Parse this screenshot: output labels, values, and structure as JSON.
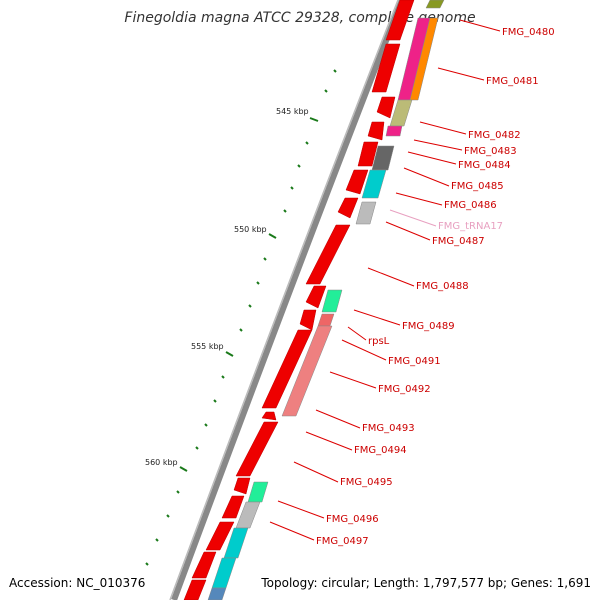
{
  "title": "Finegoldia magna ATCC 29328, complete genome",
  "footer": {
    "accession": "Accession: NC_010376",
    "summary": "Topology: circular; Length: 1,797,577 bp; Genes: 1,691"
  },
  "scale_labels": [
    "545 kbp",
    "550 kbp",
    "555 kbp",
    "560 kbp"
  ],
  "genes": [
    {
      "name": "FMG_0480",
      "color": "#cc0000"
    },
    {
      "name": "FMG_0481",
      "color": "#cc0000"
    },
    {
      "name": "FMG_0482",
      "color": "#cc0000"
    },
    {
      "name": "FMG_0483",
      "color": "#cc0000"
    },
    {
      "name": "FMG_0484",
      "color": "#cc0000"
    },
    {
      "name": "FMG_0485",
      "color": "#cc0000"
    },
    {
      "name": "FMG_0486",
      "color": "#cc0000"
    },
    {
      "name": "FMG_tRNA17",
      "color": "#e8a0c0"
    },
    {
      "name": "FMG_0487",
      "color": "#cc0000"
    },
    {
      "name": "FMG_0488",
      "color": "#cc0000"
    },
    {
      "name": "FMG_0489",
      "color": "#cc0000"
    },
    {
      "name": "rpsL",
      "color": "#cc0000"
    },
    {
      "name": "FMG_0491",
      "color": "#cc0000"
    },
    {
      "name": "FMG_0492",
      "color": "#cc0000"
    },
    {
      "name": "FMG_0493",
      "color": "#cc0000"
    },
    {
      "name": "FMG_0494",
      "color": "#cc0000"
    },
    {
      "name": "FMG_0495",
      "color": "#cc0000"
    },
    {
      "name": "FMG_0496",
      "color": "#cc0000"
    },
    {
      "name": "FMG_0497",
      "color": "#cc0000"
    }
  ],
  "colors": {
    "backbone": "#888888",
    "gene": "#ee0000",
    "tick": "#1a7a1a",
    "label_line": "#dd0000"
  }
}
